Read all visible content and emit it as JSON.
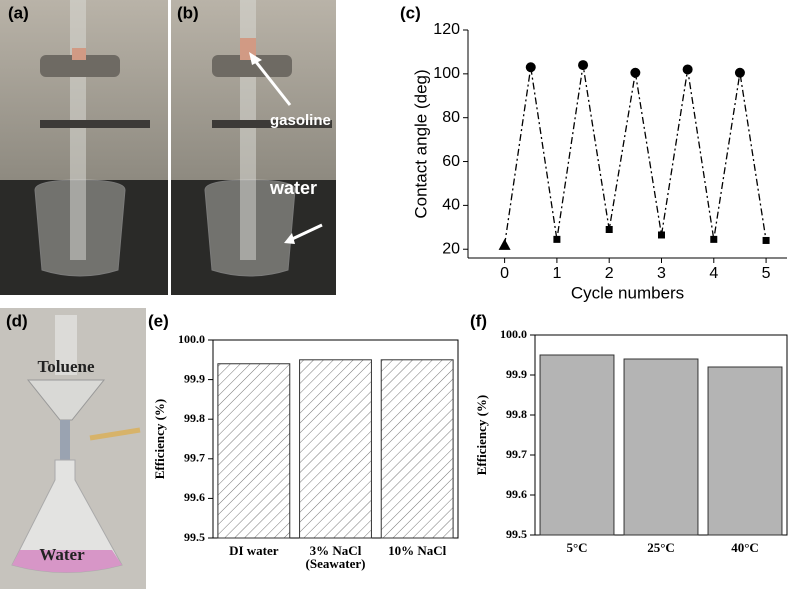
{
  "panels": {
    "a": {
      "label": "(a)"
    },
    "b": {
      "label": "(b)",
      "annotations": [
        "gasoline",
        "water"
      ]
    },
    "d": {
      "label": "(d)",
      "annotations": [
        "Toluene",
        "Water"
      ]
    }
  },
  "chart_data": [
    {
      "type": "line",
      "title": "(c)",
      "x_label": "Cycle numbers",
      "y_label": "Contact angle (deg)",
      "x": [
        0,
        0.5,
        1,
        1.5,
        2,
        2.5,
        3,
        3.5,
        4,
        4.5,
        5
      ],
      "values": [
        22,
        103,
        24.5,
        104,
        29,
        100.5,
        26.5,
        102,
        24.5,
        100.5,
        24
      ],
      "markers": [
        "triangle",
        "circle",
        "square",
        "circle",
        "square",
        "circle",
        "square",
        "circle",
        "square",
        "circle",
        "square"
      ],
      "color": "#000000",
      "line_style": "dash-dot",
      "xlim": [
        -0.7,
        5.4
      ],
      "xticks": [
        0,
        1,
        2,
        3,
        4,
        5
      ],
      "ylim": [
        16,
        120
      ],
      "yticks": [
        20,
        40,
        60,
        80,
        100,
        120
      ]
    },
    {
      "type": "bar",
      "title": "(e)",
      "y_label": "Efficiency (%)",
      "categories": [
        "DI water",
        "3% NaCl\n(Seawater)",
        "10% NaCl"
      ],
      "values": [
        99.94,
        99.95,
        99.95
      ],
      "color": "#ffffff",
      "hatch": true,
      "ylim": [
        99.5,
        100
      ],
      "yticks": [
        99.5,
        99.6,
        99.7,
        99.8,
        99.9,
        {
          "value": 100,
          "label": "100.0"
        }
      ]
    },
    {
      "type": "bar",
      "title": "(f)",
      "y_label": "Efficiency (%)",
      "categories": [
        "5°C",
        "25°C",
        "40°C"
      ],
      "values": [
        99.95,
        99.94,
        99.92
      ],
      "color": "#b4b4b4",
      "hatch": false,
      "ylim": [
        99.5,
        100
      ],
      "yticks": [
        99.5,
        99.6,
        99.7,
        99.8,
        99.9,
        {
          "value": 100,
          "label": "100.0"
        }
      ]
    }
  ]
}
